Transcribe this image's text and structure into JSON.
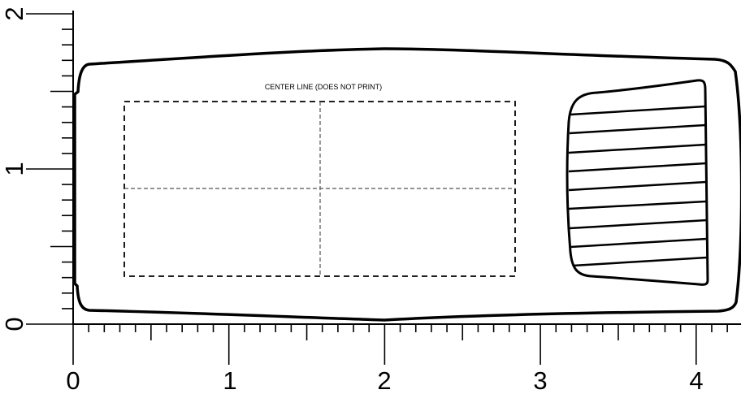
{
  "template": {
    "center_line_note": "CENTER LINE (DOES NOT PRINT)"
  },
  "ruler": {
    "horizontal_labels": [
      "0",
      "1",
      "2",
      "3",
      "4"
    ],
    "vertical_labels": [
      "0",
      "1",
      "2"
    ],
    "unit": "inch",
    "subdivisions_per_unit": 10
  }
}
